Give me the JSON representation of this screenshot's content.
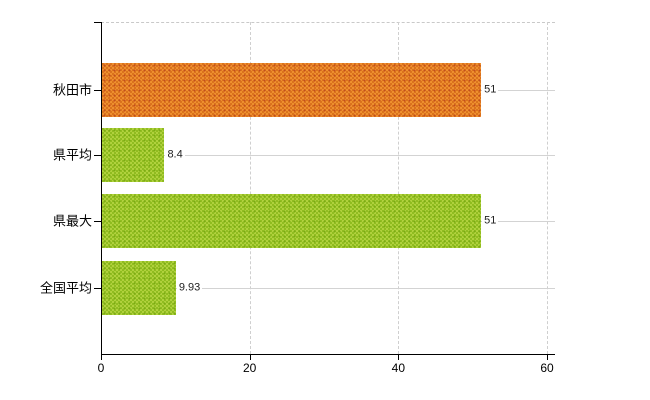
{
  "chart_data": {
    "type": "bar",
    "orientation": "horizontal",
    "title": "",
    "xlabel": "",
    "ylabel": "",
    "categories": [
      "秋田市",
      "県平均",
      "県最大",
      "全国平均"
    ],
    "values": [
      51,
      8.4,
      51,
      9.93
    ],
    "value_labels": [
      "51",
      "8.4",
      "51",
      "9.93"
    ],
    "series_colors": [
      "#e07b22",
      "#9cc42c",
      "#9cc42c",
      "#9cc42c"
    ],
    "xlim": [
      0,
      60
    ],
    "x_tick_values": [
      0,
      20,
      40,
      60
    ],
    "x_tick_labels": [
      "0",
      "20",
      "40",
      "60"
    ],
    "grid": "on",
    "legend": "none",
    "colors": {
      "background": "#ffffff",
      "axis": "#000000",
      "gridline_solid": "#d3d3d3",
      "gridline_dashed": "#cfcfcf",
      "value_text": "#222222",
      "bar_accent_orange": "#e07b22",
      "bar_accent_green": "#9cc42c"
    }
  }
}
